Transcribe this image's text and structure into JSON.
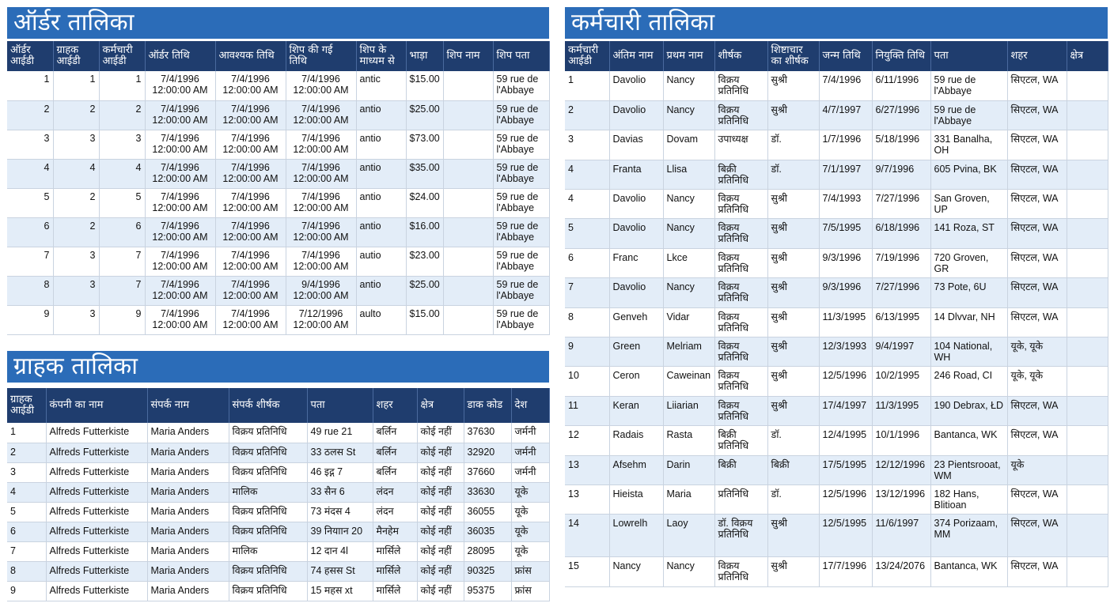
{
  "orders": {
    "title": "ऑर्डर तालिका",
    "headers": [
      "ऑर्डर आईडी",
      "ग्राहक आईडी",
      "कर्मचारी आईडी",
      "ऑर्डर तिथि",
      "आवश्यक तिथि",
      "शिप की गई तिथि",
      "शिप के माध्यम से",
      "भाड़ा",
      "शिप नाम",
      "शिप पता"
    ],
    "rows": [
      [
        "1",
        "1",
        "1",
        "7/4/1996 12:00:00 AM",
        "7/4/1996 12:00:00 AM",
        "7/4/1996 12:00:00 AM",
        "antic",
        "$15.00",
        "",
        "59 rue de l'Abbaye"
      ],
      [
        "2",
        "2",
        "2",
        "7/4/1996 12:00:00 AM",
        "7/4/1996 12:00:00 AM",
        "7/4/1996 12:00:00 AM",
        "antio",
        "$25.00",
        "",
        "59 rue de l'Abbaye"
      ],
      [
        "3",
        "3",
        "3",
        "7/4/1996 12:00:00 AM",
        "7/4/1996 12:00:00 AM",
        "7/4/1996 12:00:00 AM",
        "antio",
        "$73.00",
        "",
        "59 rue de l'Abbaye"
      ],
      [
        "4",
        "4",
        "4",
        "7/4/1996 12:00:00 AM",
        "7/4/1996 12:00:00 AM",
        "7/4/1996 12:00:00 AM",
        "antio",
        "$35.00",
        "",
        "59 rue de l'Abbaye"
      ],
      [
        "5",
        "2",
        "5",
        "7/4/1996 12:00:00 AM",
        "7/4/1996 12:00:00 AM",
        "7/4/1996 12:00:00 AM",
        "antio",
        "$24.00",
        "",
        "59 rue de l'Abbaye"
      ],
      [
        "6",
        "2",
        "6",
        "7/4/1996 12:00:00 AM",
        "7/4/1996 12:00:00 AM",
        "7/4/1996 12:00:00 AM",
        "antio",
        "$16.00",
        "",
        "59 rue de l'Abbaye"
      ],
      [
        "7",
        "3",
        "7",
        "7/4/1996 12:00:00 AM",
        "7/4/1996 12:00:00 AM",
        "7/4/1996 12:00:00 AM",
        "autio",
        "$23.00",
        "",
        "59 rue de l'Abbaye"
      ],
      [
        "8",
        "3",
        "7",
        "7/4/1996 12:00:00 AM",
        "7/4/1996 12:00:00 AM",
        "9/4/1996 12:00:00 AM",
        "antio",
        "$25.00",
        "",
        "59 rue de l'Abbaye"
      ],
      [
        "9",
        "3",
        "9",
        "7/4/1996 12:00:00 AM",
        "7/4/1996 12:00:00 AM",
        "7/12/1996 12:00:00 AM",
        "aulto",
        "$15.00",
        "",
        "59 rue de l'Abbaye"
      ]
    ]
  },
  "customers": {
    "title": "ग्राहक तालिका",
    "headers": [
      "ग्राहक आईडी",
      "कंपनी का नाम",
      "संपर्क नाम",
      "संपर्क शीर्षक",
      "पता",
      "शहर",
      "क्षेत्र",
      "डाक कोड",
      "देश"
    ],
    "rows": [
      [
        "1",
        "Alfreds Futterkiste",
        "Maria Anders",
        "विक्रय प्रतिनिधि",
        "49 rue 21",
        "बर्लिन",
        "कोई नहीं",
        "37630",
        "जर्मनी"
      ],
      [
        "2",
        "Alfreds Futterkiste",
        "Maria Anders",
        "विक्रय प्रतिनिधि",
        "33 ठलस St",
        "बर्लिन",
        "कोई नहीं",
        "32920",
        "जर्मनी"
      ],
      [
        "3",
        "Alfreds Futterkiste",
        "Maria Anders",
        "विक्रय प्रतिनिधि",
        "46 इद्ग 7",
        "बर्लिन",
        "कोई नहीं",
        "37660",
        "जर्मनी"
      ],
      [
        "4",
        "Alfreds Futterkiste",
        "Maria Anders",
        "मालिक",
        "33 सैन 6",
        "लंदन",
        "कोई नहीं",
        "33630",
        "यूके"
      ],
      [
        "5",
        "Alfreds Futterkiste",
        "Maria Anders",
        "विक्रय प्रतिनिधि",
        "73 मंदस 4",
        "लंदन",
        "कोई नहीं",
        "36055",
        "यूके"
      ],
      [
        "6",
        "Alfreds Futterkiste",
        "Maria Anders",
        "विक्रय प्रतिनिधि",
        "39 नियाान 20",
        "मैनहेम",
        "कोई नहीं",
        "36035",
        "यूके"
      ],
      [
        "7",
        "Alfreds Futterkiste",
        "Maria Anders",
        "मालिक",
        "12 दान 4l",
        "मार्सिले",
        "कोई नहीं",
        "28095",
        "यूके"
      ],
      [
        "8",
        "Alfreds Futterkiste",
        "Maria Anders",
        "विक्रय प्रतिनिधि",
        "74 हसस St",
        "मार्सिले",
        "कोई नहीं",
        "90325",
        "फ्रांस"
      ],
      [
        "9",
        "Alfreds Futterkiste",
        "Maria Anders",
        "विक्रय प्रतिनिधि",
        "15 महस xt",
        "मार्सिले",
        "कोई नहीं",
        "95375",
        "फ्रांस"
      ]
    ]
  },
  "employees": {
    "title": "कर्मचारी तालिका",
    "headers": [
      "कर्मचारी आईडी",
      "अंतिम नाम",
      "प्रथम नाम",
      "शीर्षक",
      "शिष्टाचार का शीर्षक",
      "जन्म तिथि",
      "नियुक्ति तिथि",
      "पता",
      "शहर",
      "क्षेत्र"
    ],
    "rows": [
      [
        "1",
        "Davolio",
        "Nancy",
        "विक्रय प्रतिनिधि",
        "सुश्री",
        "7/4/1996",
        "6/11/1996",
        "59 rue de l'Abbaye",
        "सिएटल, WA",
        ""
      ],
      [
        "2",
        "Davolio",
        "Nancy",
        "विक्रय प्रतिनिधि",
        "सुश्री",
        "4/7/1997",
        "6/27/1996",
        "59 rue de l'Abbaye",
        "सिएटल, WA",
        ""
      ],
      [
        "3",
        "Davias",
        "Dovam",
        "उपाध्यक्ष",
        "डॉ.",
        "1/7/1996",
        "5/18/1996",
        "331 Banalha, OH",
        "सिएटल, WA",
        ""
      ],
      [
        "4",
        "Franta",
        "Llisa",
        "बिक्री प्रतिनिधि",
        "डॉ.",
        "7/1/1997",
        "9/7/1996",
        "605 Pvina, BK",
        "सिएटल, WA",
        ""
      ],
      [
        "4",
        "Davolio",
        "Nancy",
        "विक्रय प्रतिनिधि",
        "सुश्री",
        "7/4/1993",
        "7/27/1996",
        "San Groven, UP",
        "सिएटल, WA",
        ""
      ],
      [
        "5",
        "Davolio",
        "Nancy",
        "विक्रय प्रतिनिधि",
        "सुश्री",
        "7/5/1995",
        "6/18/1996",
        "141 Roza, ST",
        "सिएटल, WA",
        ""
      ],
      [
        "6",
        "Franc",
        "Lkce",
        "विक्रय प्रतिनिधि",
        "सुश्री",
        "9/3/1996",
        "7/19/1996",
        "720 Groven, GR",
        "सिएटल, WA",
        ""
      ],
      [
        "7",
        "Davolio",
        "Nancy",
        "विक्रय प्रतिनिधि",
        "सुश्री",
        "9/3/1996",
        "7/27/1996",
        "73 Pote, 6U",
        "सिएटल, WA",
        ""
      ],
      [
        "8",
        "Genveh",
        "Vidar",
        "विक्रय प्रतिनिधि",
        "सुश्री",
        "11/3/1995",
        "6/13/1995",
        "14 Dlvvar, NH",
        "सिएटल, WA",
        ""
      ],
      [
        "9",
        "Green",
        "Melriam",
        "विक्रय प्रतिनिधि",
        "सुश्री",
        "12/3/1993",
        "9/4/1997",
        "104 National, WH",
        "यूके, यूके",
        ""
      ],
      [
        "10",
        "Ceron",
        "Caweinan",
        "विक्रय प्रतिनिधि",
        "सुश्री",
        "12/5/1996",
        "10/2/1995",
        "246 Road, CI",
        "यूके, यूके",
        ""
      ],
      [
        "11",
        "Keran",
        "Liiarian",
        "विक्रय प्रतिनिधि",
        "सुश्री",
        "17/4/1997",
        "11/3/1995",
        "190 Debrax, ŁD",
        "सिएटल, WA",
        ""
      ],
      [
        "12",
        "Radais",
        "Rasta",
        "बिक्री प्रतिनिधि",
        "डॉ.",
        "12/4/1995",
        "10/1/1996",
        "Bantanca, WK",
        "सिएटल, WA",
        ""
      ],
      [
        "13",
        "Afsehm",
        "Darin",
        "बिक्री",
        "बिक्री",
        "17/5/1995",
        "12/12/1996",
        "23 Pientsrooat, WM",
        "यूके",
        ""
      ],
      [
        "13",
        "Hieista",
        "Maria",
        "प्रतिनिधि",
        "डॉ.",
        "12/5/1996",
        "13/12/1996",
        "182 Hans, Blitioan",
        "सिएटल, WA",
        ""
      ],
      [
        "14",
        "Lowrelh",
        "Laoy",
        "डॉ. विक्रय प्रतिनिधि",
        "सुश्री",
        "12/5/1995",
        "11/6/1997",
        "374 Porizaam, MM",
        "सिएटल, WA",
        ""
      ],
      [
        "15",
        "Nancy",
        "Nancy",
        "विक्रय प्रतिनिधि",
        "सुश्री",
        "17/7/1996",
        "13/24/2076",
        "Bantanca, WK",
        "सिएटल, WA",
        ""
      ]
    ]
  },
  "colors": {
    "banner": "#2b6cb8",
    "header": "#1f3d6e",
    "stripe": "#e3edf8"
  }
}
